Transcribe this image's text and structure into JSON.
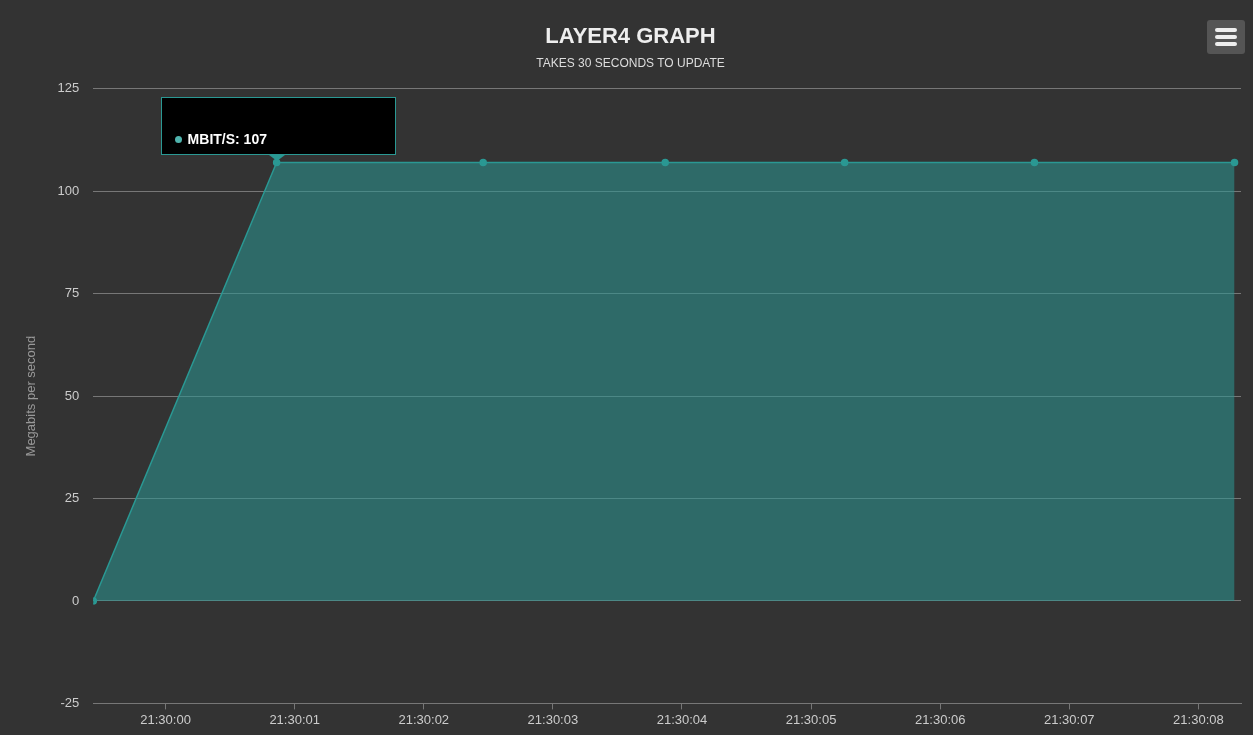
{
  "chart_data": {
    "type": "area",
    "title": "LAYER4 GRAPH",
    "subtitle": "TAKES 30 SECONDS TO UPDATE",
    "ylabel": "Megabits per second",
    "x": [
      21.49984444,
      21.50023889,
      21.50068333,
      21.501075,
      21.50146111,
      21.50186944,
      21.5023
    ],
    "series": [
      {
        "color": "#2a9893",
        "values": [
          0,
          107,
          107,
          107,
          107,
          107,
          107
        ]
      }
    ],
    "xlim": [
      21.49984444,
      21.50231389
    ],
    "xticks": [
      {
        "value": 21.5,
        "label": "21:30:00"
      },
      {
        "value": 21.50027778,
        "label": "21:30:01"
      },
      {
        "value": 21.50055556,
        "label": "21:30:02"
      },
      {
        "value": 21.50083333,
        "label": "21:30:03"
      },
      {
        "value": 21.50111111,
        "label": "21:30:04"
      },
      {
        "value": 21.50138889,
        "label": "21:30:05"
      },
      {
        "value": 21.50166667,
        "label": "21:30:06"
      },
      {
        "value": 21.50194444,
        "label": "21:30:07"
      },
      {
        "value": 21.50222222,
        "label": "21:30:08"
      }
    ],
    "ylim": [
      -25,
      125
    ],
    "yticks": [
      -25,
      0,
      25,
      50,
      75,
      100,
      125
    ],
    "annotations": [
      {
        "text": "MBIT/S: 107",
        "x": 21.50023889,
        "y": 107
      }
    ],
    "grid": "y",
    "legend": false,
    "marker": "circle",
    "line_style": "solid"
  }
}
